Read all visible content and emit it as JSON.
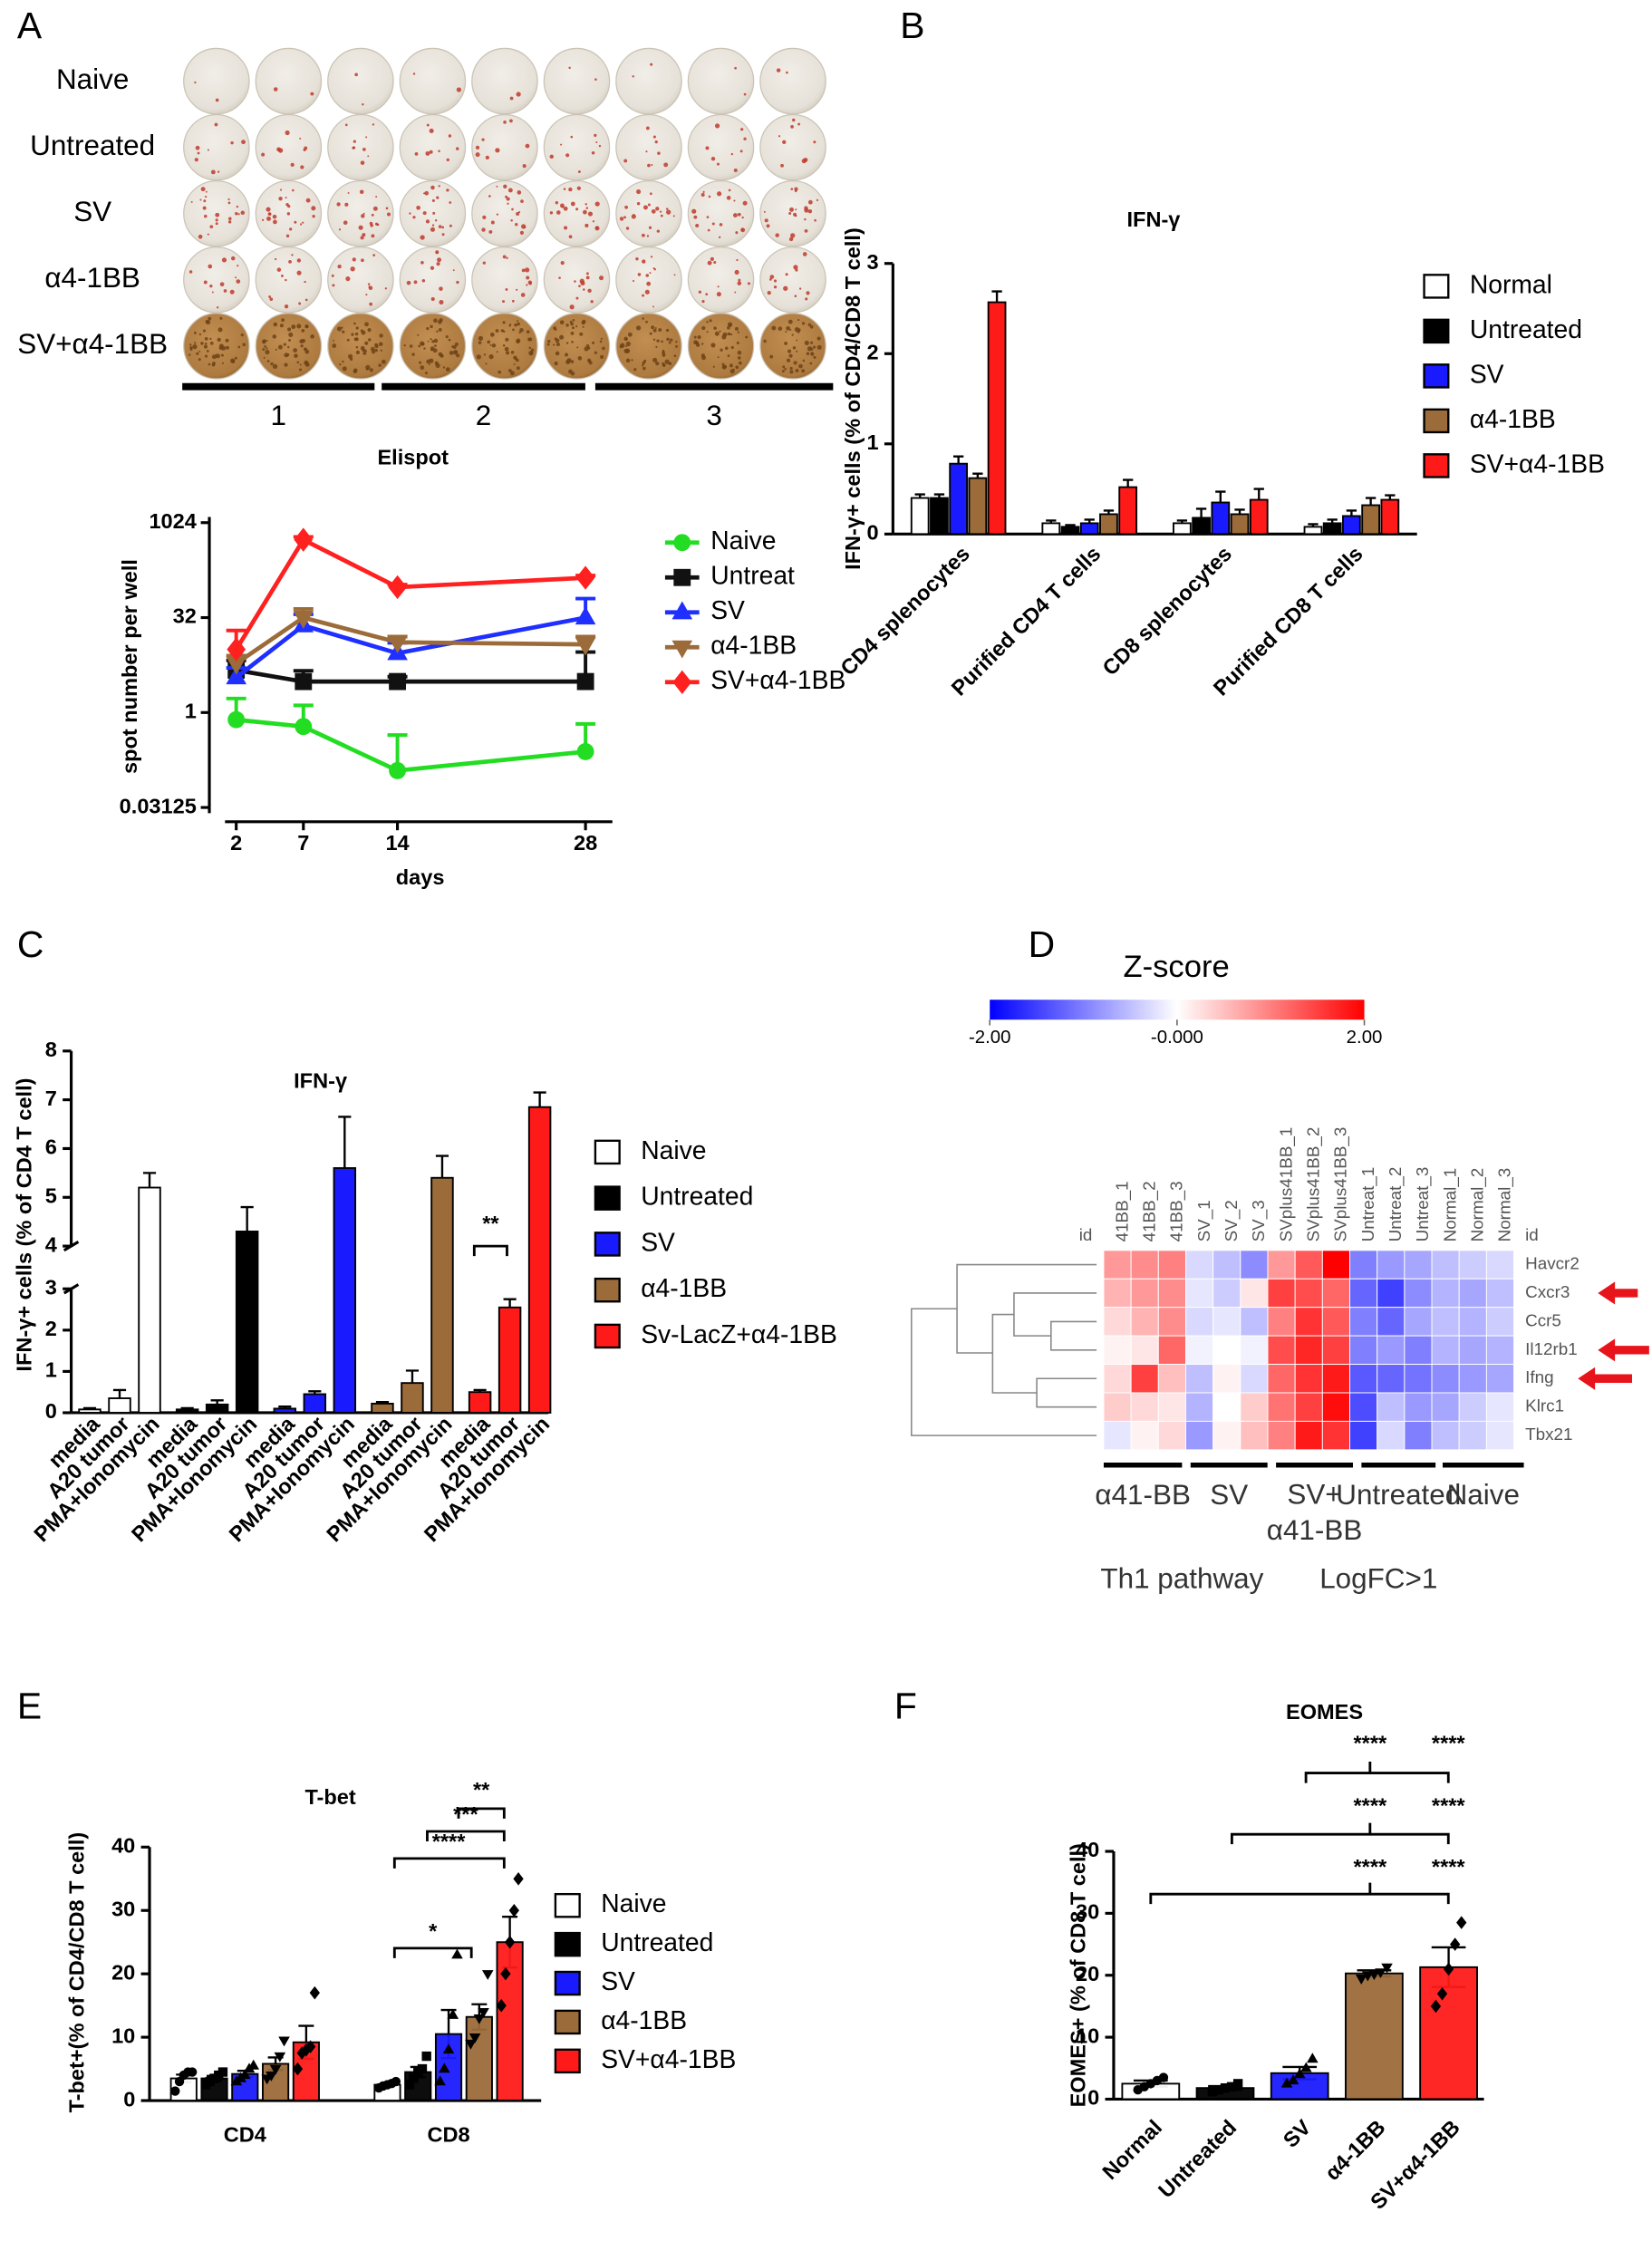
{
  "chart_data": [
    {
      "type": "well-plate",
      "panel": "A",
      "rows": [
        "Naive",
        "Untreated",
        "SV",
        "α4-1BB",
        "SV+α4-1BB"
      ],
      "groups": [
        "1",
        "2",
        "3"
      ],
      "title": "Elispot"
    },
    {
      "type": "line",
      "log_scale": "y",
      "x": [
        2,
        7,
        14,
        28
      ],
      "xlim": [
        0,
        30
      ],
      "xticks": [
        2,
        7,
        14,
        28
      ],
      "ylim": [
        0.03125,
        1024
      ],
      "yticks": [
        0.03125,
        1,
        32,
        1024
      ],
      "xlabel": "days",
      "ylabel": "spot number per well",
      "legend": "right",
      "series": [
        {
          "name": "Naive",
          "color": "#22dd22",
          "marker": "circle",
          "values": [
            0.77,
            0.6,
            0.12,
            0.24
          ],
          "errors": [
            0.9,
            0.7,
            0.32,
            0.42
          ]
        },
        {
          "name": "Untreat",
          "color": "#111111",
          "marker": "square",
          "values": [
            4.7,
            3.1,
            3.1,
            3.1
          ],
          "errors": [
            2,
            1.5,
            0.6,
            6
          ]
        },
        {
          "name": "SV",
          "color": "#1f2fff",
          "marker": "triangle",
          "values": [
            3.6,
            24,
            8.7,
            32
          ],
          "errors": [
            1.5,
            12,
            4,
            32
          ]
        },
        {
          "name": "α4-1BB",
          "color": "#9c6b3a",
          "marker": "triangle-down",
          "values": [
            6,
            32,
            13,
            12
          ],
          "errors": [
            2,
            12,
            3,
            4
          ]
        },
        {
          "name": "SV+α4-1BB",
          "color": "#ff2020",
          "marker": "diamond",
          "values": [
            10,
            550,
            97,
            137
          ],
          "errors": [
            10,
            60,
            10,
            12
          ]
        }
      ]
    },
    {
      "type": "bar",
      "panel": "B",
      "title": "IFN-γ",
      "ylabel": "IFN-γ+ cells (% of CD4/CD8 T cell)",
      "categories": [
        "CD4 splenocytes",
        "Purified CD4 T cells",
        "CD8 splenocytes",
        "Purified CD8 T cells"
      ],
      "ylim": [
        0,
        3
      ],
      "yticks": [
        0,
        1,
        2,
        3
      ],
      "legend": "right",
      "series": [
        {
          "name": "Normal",
          "color": "#ffffff",
          "values": [
            0.4,
            0.12,
            0.12,
            0.08
          ],
          "errors": [
            0.04,
            0.03,
            0.03,
            0.03
          ]
        },
        {
          "name": "Untreated",
          "color": "#000000",
          "values": [
            0.4,
            0.08,
            0.18,
            0.12
          ],
          "errors": [
            0.04,
            0.02,
            0.1,
            0.04
          ]
        },
        {
          "name": "SV",
          "color": "#1a1aff",
          "values": [
            0.78,
            0.12,
            0.35,
            0.2
          ],
          "errors": [
            0.08,
            0.04,
            0.12,
            0.06
          ]
        },
        {
          "name": "α4-1BB",
          "color": "#9c6b3a",
          "values": [
            0.62,
            0.22,
            0.22,
            0.32
          ],
          "errors": [
            0.05,
            0.04,
            0.05,
            0.08
          ]
        },
        {
          "name": "SV+α4-1BB",
          "color": "#ff1a1a",
          "values": [
            2.57,
            0.52,
            0.38,
            0.38
          ],
          "errors": [
            0.12,
            0.08,
            0.12,
            0.05
          ]
        }
      ]
    },
    {
      "type": "bar",
      "panel": "C",
      "title": "IFN-γ",
      "ylabel": "IFN-γ+ cells (% of CD4 T cell)",
      "categories": [
        "media",
        "A20 tumor",
        "PMA+Ionomycin"
      ],
      "ylim": [
        0,
        8
      ],
      "yticks": [
        0,
        1,
        2,
        3,
        4,
        5,
        6,
        7,
        8
      ],
      "axis_break": [
        3,
        4
      ],
      "legend": "right",
      "significance": [
        "**"
      ],
      "series": [
        {
          "name": "Naive",
          "color": "#ffffff",
          "values": [
            0.08,
            0.35,
            5.2
          ],
          "errors": [
            0.03,
            0.2,
            0.3
          ]
        },
        {
          "name": "Untreated",
          "color": "#000000",
          "values": [
            0.08,
            0.2,
            4.3
          ],
          "errors": [
            0.03,
            0.1,
            0.5
          ]
        },
        {
          "name": "SV",
          "color": "#1a1aff",
          "values": [
            0.1,
            0.45,
            5.6
          ],
          "errors": [
            0.05,
            0.07,
            1.05
          ]
        },
        {
          "name": "α4-1BB",
          "color": "#9c6b3a",
          "values": [
            0.22,
            0.72,
            5.4
          ],
          "errors": [
            0.04,
            0.3,
            0.45
          ]
        },
        {
          "name": "Sv-LacZ+α4-1BB",
          "color": "#ff1a1a",
          "values": [
            0.5,
            2.55,
            6.85
          ],
          "errors": [
            0.05,
            0.2,
            0.3
          ]
        }
      ]
    },
    {
      "type": "heatmap",
      "panel": "D",
      "colorbar_label": "Z-score",
      "zlim": [
        -2,
        2
      ],
      "zticks": [
        {
          "value": -2,
          "label": "-2.00"
        },
        {
          "value": 0,
          "label": "-0.000"
        },
        {
          "value": 2,
          "label": "2.00"
        }
      ],
      "colors": [
        "#0000ff",
        "#ffffff",
        "#ff0000"
      ],
      "columns": [
        "41BB_1",
        "41BB_2",
        "41BB_3",
        "SV_1",
        "SV_2",
        "SV_3",
        "SVplus41BB_1",
        "SVplus41BB_2",
        "SVplus41BB_3",
        "Untreat_1",
        "Untreat_2",
        "Untreat_3",
        "Normal_1",
        "Normal_2",
        "Normal_3"
      ],
      "rows": [
        "Havcr2",
        "Cxcr3",
        "Ccr5",
        "Il12rb1",
        "Ifng",
        "Klrc1",
        "Tbx21"
      ],
      "values": [
        [
          0.8,
          0.9,
          1.0,
          -0.3,
          -0.5,
          -0.9,
          0.8,
          1.3,
          2.0,
          -1.0,
          -0.8,
          -0.7,
          -0.5,
          -0.4,
          -0.3
        ],
        [
          0.6,
          0.8,
          0.9,
          -0.2,
          -0.4,
          0.2,
          1.5,
          1.4,
          1.2,
          -1.2,
          -1.5,
          -0.9,
          -0.6,
          -0.7,
          -0.5
        ],
        [
          0.3,
          0.6,
          0.9,
          -0.3,
          -0.2,
          -0.5,
          1.0,
          1.6,
          1.3,
          -1.0,
          -1.2,
          -0.7,
          -0.5,
          -0.6,
          -0.4
        ],
        [
          0.1,
          0.2,
          1.2,
          -0.1,
          0.0,
          -0.1,
          1.4,
          1.7,
          1.5,
          -1.0,
          -0.8,
          -1.0,
          -0.6,
          -0.7,
          -0.6
        ],
        [
          0.3,
          1.5,
          0.5,
          -0.5,
          0.1,
          -0.3,
          1.2,
          1.6,
          1.8,
          -1.3,
          -1.2,
          -1.1,
          -0.9,
          -0.8,
          -0.7
        ],
        [
          0.4,
          0.3,
          0.2,
          -0.6,
          0.0,
          0.4,
          1.1,
          1.5,
          1.9,
          -1.4,
          -0.5,
          -0.8,
          -0.7,
          -0.4,
          -0.2
        ],
        [
          -0.2,
          0.1,
          0.3,
          -0.8,
          0.1,
          0.5,
          1.0,
          1.8,
          1.6,
          -1.5,
          -0.3,
          -1.0,
          -0.5,
          -0.4,
          -0.2
        ]
      ],
      "id_label": "id",
      "groups": [
        "α41-BB",
        "SV",
        "SV+\nα41-BB",
        "Untreated",
        "Naive"
      ],
      "footer": [
        "Th1 pathway",
        "LogFC>1"
      ]
    },
    {
      "type": "bar",
      "panel": "E",
      "title": "T-bet",
      "ylabel": "T-bet+(% of CD4/CD8 T cell)",
      "categories": [
        "CD4",
        "CD8"
      ],
      "ylim": [
        0,
        40
      ],
      "yticks": [
        0,
        10,
        20,
        30,
        40
      ],
      "legend": "right",
      "significance": [
        "**",
        "***",
        "****",
        "*"
      ],
      "series": [
        {
          "name": "Naive",
          "color": "#ffffff",
          "marker": "circle",
          "values": [
            3.5,
            2.5
          ],
          "errors": [
            0.6,
            0.2
          ],
          "points": [
            [
              1.5,
              3,
              4,
              4.5,
              4.5
            ],
            [
              2,
              2.3,
              2.5,
              2.7,
              3
            ]
          ]
        },
        {
          "name": "Untreated",
          "color": "#000000",
          "marker": "square",
          "values": [
            3.5,
            4.5
          ],
          "errors": [
            0.4,
            0.8
          ],
          "points": [
            [
              2.5,
              3,
              3.5,
              4,
              4.5
            ],
            [
              2.5,
              3.5,
              4.5,
              5,
              7
            ]
          ]
        },
        {
          "name": "SV",
          "color": "#1a1aff",
          "marker": "triangle",
          "values": [
            4.2,
            10.5
          ],
          "errors": [
            0.5,
            3.8
          ],
          "points": [
            [
              3,
              3.5,
              4,
              5,
              5.5
            ],
            [
              3,
              5,
              8,
              13.5,
              23
            ]
          ]
        },
        {
          "name": "α4-1BB",
          "color": "#9c6b3a",
          "marker": "triangle-down",
          "values": [
            5.8,
            13.2
          ],
          "errors": [
            1,
            2
          ],
          "points": [
            [
              3.5,
              4,
              5,
              7,
              9.5
            ],
            [
              9,
              10,
              13,
              14,
              20
            ]
          ]
        },
        {
          "name": "SV+α4-1BB",
          "color": "#ff1a1a",
          "marker": "diamond",
          "values": [
            9.2,
            25
          ],
          "errors": [
            2.6,
            4
          ],
          "points": [
            [
              5,
              7.5,
              8,
              8.5,
              17
            ],
            [
              15,
              20,
              25,
              30,
              35
            ]
          ]
        }
      ]
    },
    {
      "type": "bar",
      "panel": "F",
      "title": "EOMES",
      "ylabel": "EOMES+ (% of CD8 T cell)",
      "categories": [
        "Normal",
        "Untreated",
        "SV",
        "α4-1BB",
        "SV+α4-1BB"
      ],
      "ylim": [
        0,
        40
      ],
      "yticks": [
        0,
        10,
        20,
        30,
        40
      ],
      "values": [
        2.5,
        1.8,
        4.2,
        20.3,
        21.3
      ],
      "errors": [
        0.5,
        0.3,
        1,
        0.5,
        3.2
      ],
      "colors": [
        "#ffffff",
        "#000000",
        "#1a1aff",
        "#9c6b3a",
        "#ff1a1a"
      ],
      "markers": [
        "circle",
        "square",
        "triangle",
        "triangle-down",
        "diamond"
      ],
      "points": [
        [
          1.5,
          2,
          2.5,
          3,
          3.5
        ],
        [
          1.2,
          1.5,
          1.8,
          2,
          2.5
        ],
        [
          2.5,
          3,
          4,
          5,
          6.5
        ],
        [
          19.5,
          20,
          20.2,
          20.5,
          21.3
        ],
        [
          15,
          17,
          21,
          25,
          28.5
        ]
      ],
      "significance": [
        "****",
        "****",
        "****",
        "****",
        "****",
        "****"
      ]
    }
  ]
}
